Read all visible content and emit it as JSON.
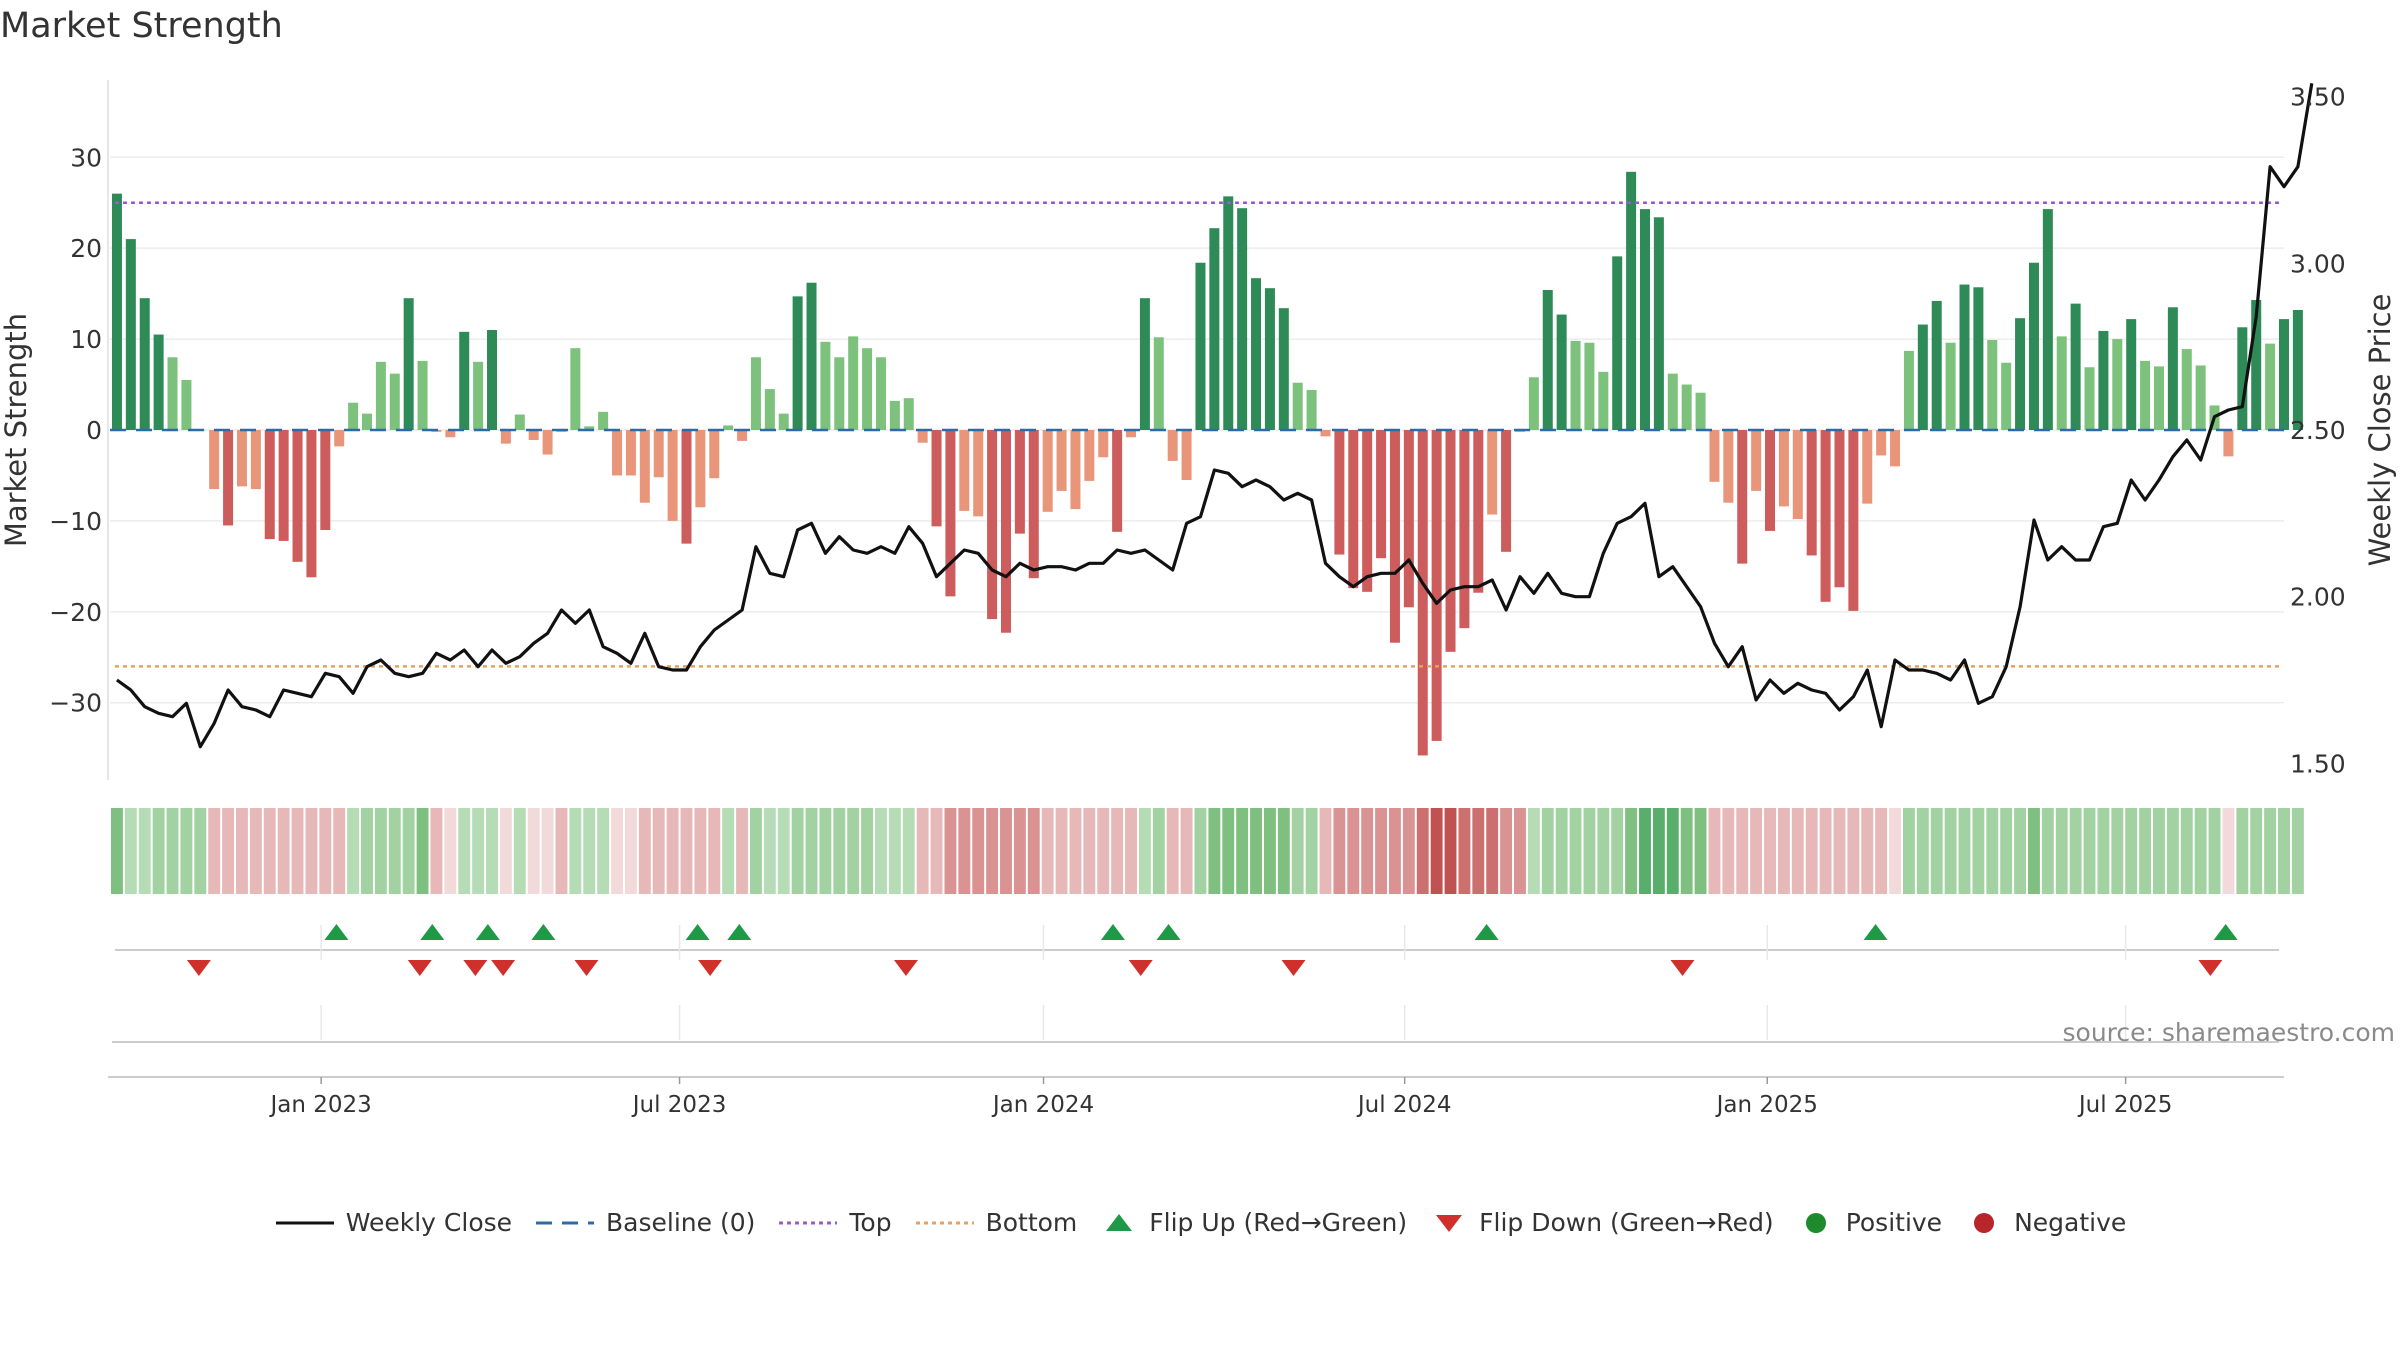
{
  "title": "Market Strength",
  "source": "source: sharemaestro.com",
  "legend": [
    {
      "key": "close",
      "label": "Weekly Close"
    },
    {
      "key": "baseline",
      "label": "Baseline (0)"
    },
    {
      "key": "top",
      "label": "Top"
    },
    {
      "key": "bottom",
      "label": "Bottom"
    },
    {
      "key": "flipup",
      "label": "Flip Up (Red→Green)"
    },
    {
      "key": "flipdown",
      "label": "Flip Down (Green→Red)"
    },
    {
      "key": "positive",
      "label": "Positive"
    },
    {
      "key": "negative",
      "label": "Negative"
    }
  ],
  "colors": {
    "close": "#111111",
    "baseline": "#2b6ca8",
    "top": "#9b59d0",
    "bottom": "#e8a060",
    "flip_up": "#1e9a47",
    "flip_down": "#d0302c",
    "positive": "#1d8a2c",
    "negative": "#b8252a",
    "green_dark": "#2e8b57",
    "green_light": "#7cc17c",
    "red_dark": "#cd5c5c",
    "red_light": "#e8957a"
  },
  "chart_data": {
    "type": "bar",
    "title": "Market Strength",
    "ylabel": "Market Strength",
    "y2label": "Weekly Close Price",
    "ylim": [
      -38.5,
      38.5
    ],
    "y2lim": [
      1.45,
      3.55
    ],
    "yticks": [
      30,
      20,
      10,
      0,
      -10,
      -20,
      -30
    ],
    "yticklabels": [
      "30",
      "20",
      "10",
      "0",
      "−10",
      "−20",
      "−30"
    ],
    "y2ticks": [
      3.5,
      3.0,
      2.5,
      2.0,
      1.5
    ],
    "y2ticklabels": [
      "3.50",
      "3.00",
      "2.50",
      "2.00",
      "1.50"
    ],
    "xlim": [
      0,
      156.5
    ],
    "xticks": [
      15.2,
      41.0,
      67.2,
      93.2,
      119.3,
      145.1
    ],
    "xticklabels": [
      "Jan 2023",
      "Jul 2023",
      "Jan 2024",
      "Jul 2024",
      "Jan 2025",
      "Jul 2025"
    ],
    "top_line": 25,
    "bottom_line": -26,
    "strength": [
      26,
      21,
      14.5,
      10.5,
      8,
      5.5,
      0,
      -6.5,
      -10.5,
      -6.2,
      -6.5,
      -12,
      -12.2,
      -14.5,
      -16.2,
      -11,
      -1.8,
      3,
      1.8,
      7.5,
      6.2,
      14.5,
      7.6,
      -0.2,
      -0.8,
      10.8,
      7.5,
      11,
      -1.5,
      1.7,
      -1.1,
      -2.7,
      -0.2,
      9,
      0.4,
      2,
      -5,
      -5,
      -8,
      -5.2,
      -10,
      -12.5,
      -8.5,
      -5.3,
      0.5,
      -1.2,
      8,
      4.5,
      1.8,
      14.7,
      16.2,
      9.7,
      8,
      10.3,
      9,
      8,
      3.2,
      3.5,
      -1.4,
      -10.6,
      -18.3,
      -8.9,
      -9.5,
      -20.8,
      -22.3,
      -11.4,
      -16.3,
      -9,
      -6.7,
      -8.7,
      -5.6,
      -3,
      -11.2,
      -0.8,
      14.5,
      10.2,
      -3.4,
      -5.5,
      18.4,
      22.2,
      25.7,
      24.4,
      16.7,
      15.6,
      13.4,
      5.2,
      4.4,
      -0.7,
      -13.7,
      -17.4,
      -17.8,
      -14.1,
      -23.4,
      -19.5,
      -35.8,
      -34.2,
      -24.4,
      -21.8,
      -17.9,
      -9.3,
      -13.4,
      -0.2,
      5.8,
      15.4,
      12.7,
      9.8,
      9.6,
      6.4,
      19.1,
      28.4,
      24.3,
      23.4,
      6.2,
      5,
      4.1,
      -5.7,
      -8,
      -14.7,
      -6.7,
      -11.1,
      -8.4,
      -9.8,
      -13.8,
      -18.9,
      -17.3,
      -19.9,
      -8.1,
      -2.8,
      -4,
      8.7,
      11.6,
      14.2,
      9.6,
      16,
      15.7,
      9.9,
      7.4,
      12.3,
      18.4,
      24.3,
      10.3,
      13.9,
      6.9,
      10.9,
      10,
      12.2,
      7.6,
      7,
      13.5,
      8.9,
      7.1,
      2.7,
      -2.9,
      11.3,
      14.3,
      9.5,
      12.2,
      13.2
    ],
    "close": [
      1.75,
      1.72,
      1.67,
      1.65,
      1.64,
      1.68,
      1.55,
      1.62,
      1.72,
      1.67,
      1.66,
      1.64,
      1.72,
      1.71,
      1.7,
      1.77,
      1.76,
      1.71,
      1.79,
      1.81,
      1.77,
      1.76,
      1.77,
      1.83,
      1.81,
      1.84,
      1.79,
      1.84,
      1.8,
      1.82,
      1.86,
      1.89,
      1.96,
      1.92,
      1.96,
      1.85,
      1.83,
      1.8,
      1.89,
      1.79,
      1.78,
      1.78,
      1.85,
      1.9,
      1.93,
      1.96,
      2.15,
      2.07,
      2.06,
      2.2,
      2.22,
      2.13,
      2.18,
      2.14,
      2.13,
      2.15,
      2.13,
      2.21,
      2.16,
      2.06,
      2.1,
      2.14,
      2.13,
      2.08,
      2.06,
      2.1,
      2.08,
      2.09,
      2.09,
      2.08,
      2.1,
      2.1,
      2.14,
      2.13,
      2.14,
      2.11,
      2.08,
      2.22,
      2.24,
      2.38,
      2.37,
      2.33,
      2.35,
      2.33,
      2.29,
      2.31,
      2.29,
      2.1,
      2.06,
      2.03,
      2.06,
      2.07,
      2.07,
      2.11,
      2.04,
      1.98,
      2.02,
      2.03,
      2.03,
      2.05,
      1.96,
      2.06,
      2.01,
      2.07,
      2.01,
      2.0,
      2.0,
      2.13,
      2.22,
      2.24,
      2.28,
      2.06,
      2.09,
      2.03,
      1.97,
      1.86,
      1.79,
      1.85,
      1.69,
      1.75,
      1.71,
      1.74,
      1.72,
      1.71,
      1.66,
      1.7,
      1.78,
      1.61,
      1.81,
      1.78,
      1.78,
      1.77,
      1.75,
      1.81,
      1.68,
      1.7,
      1.79,
      1.97,
      2.23,
      2.11,
      2.15,
      2.11,
      2.11,
      2.21,
      2.22,
      2.35,
      2.29,
      2.35,
      2.42,
      2.47,
      2.41,
      2.54,
      2.56,
      2.57,
      2.84,
      3.29,
      3.23,
      3.29,
      3.54
    ],
    "heat_strip": [
      3,
      1,
      1,
      2,
      2,
      2,
      2,
      1,
      1,
      1,
      1,
      1,
      1,
      1,
      1,
      1,
      1,
      1,
      2,
      2,
      2,
      2,
      3,
      1,
      0,
      1,
      1,
      1,
      0,
      1,
      0,
      0,
      1,
      1,
      1,
      1,
      0,
      0,
      1,
      1,
      1,
      1,
      1,
      1,
      1,
      1,
      2,
      1,
      1,
      2,
      2,
      2,
      2,
      2,
      2,
      1,
      1,
      1,
      1,
      1,
      2,
      2,
      2,
      2,
      2,
      2,
      2,
      1,
      1,
      1,
      1,
      1,
      1,
      1,
      1,
      2,
      1,
      1,
      2,
      3,
      3,
      3,
      3,
      3,
      3,
      2,
      2,
      1,
      2,
      2,
      2,
      2,
      2,
      2,
      3,
      4,
      4,
      3,
      3,
      3,
      2,
      2,
      1,
      2,
      2,
      2,
      2,
      2,
      2,
      3,
      4,
      4,
      4,
      3,
      3,
      1,
      1,
      1,
      1,
      1,
      1,
      1,
      1,
      1,
      1,
      1,
      1,
      1,
      0,
      2,
      2,
      2,
      2,
      2,
      2,
      2,
      2,
      2,
      3,
      2,
      2,
      2,
      2,
      2,
      2,
      2,
      2,
      2,
      2,
      2,
      2,
      2,
      0,
      2,
      2,
      2,
      2,
      2
    ],
    "flip_up": [
      16.3,
      23.2,
      27.2,
      31.2,
      42.3,
      45.3,
      72.2,
      76.2,
      99.1,
      127.1,
      152.3
    ],
    "flip_down": [
      6.4,
      22.3,
      26.3,
      28.3,
      34.3,
      43.2,
      57.3,
      74.2,
      85.2,
      113.2,
      151.2
    ]
  }
}
